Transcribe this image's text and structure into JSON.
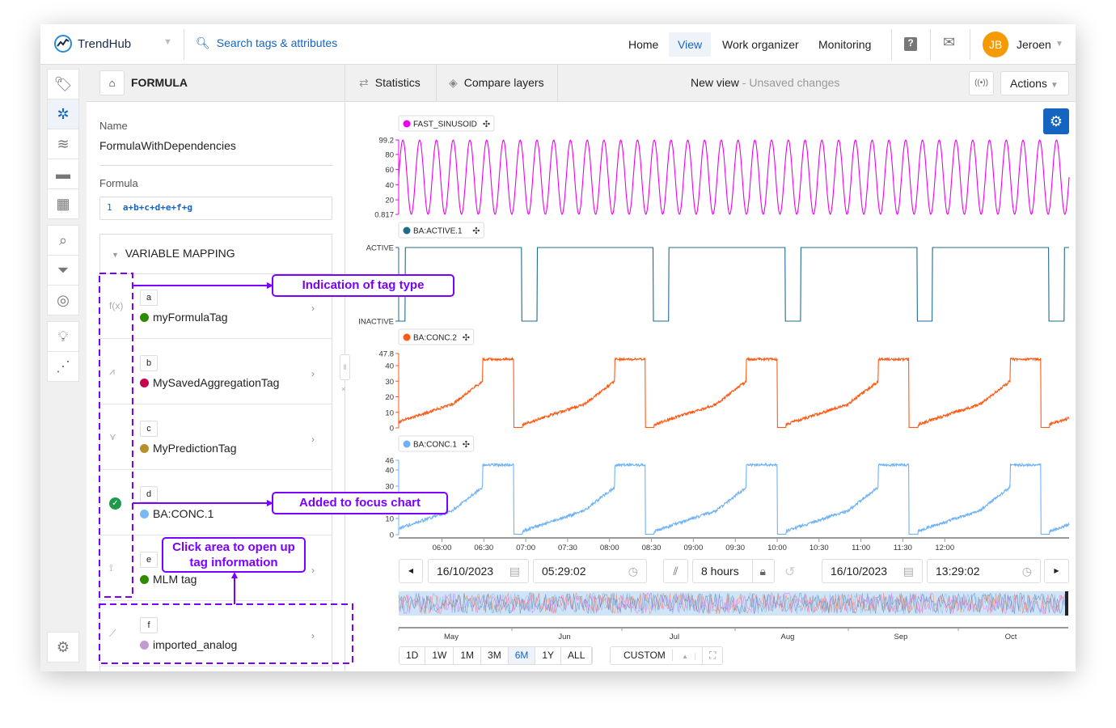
{
  "app": {
    "brand": "TrendHub",
    "search_placeholder": "Search tags & attributes"
  },
  "nav": {
    "items": [
      "Home",
      "View",
      "Work organizer",
      "Monitoring"
    ],
    "active": "View"
  },
  "user": {
    "initials": "JB",
    "name": "Jeroen",
    "avatar_color": "#f59a00"
  },
  "panel": {
    "title": "FORMULA",
    "name_label": "Name",
    "name_value": "FormulaWithDependencies",
    "formula_label": "Formula",
    "formula_line": "1",
    "formula_code": "a+b+c+d+e+f+g",
    "mapping_title": "VARIABLE MAPPING",
    "variables": [
      {
        "letter": "a",
        "name": "myFormulaTag",
        "color": "#2e8b00",
        "icon": "formula-icon"
      },
      {
        "letter": "b",
        "name": "MySavedAggregationTag",
        "color": "#c8004f",
        "icon": "aggregation-icon"
      },
      {
        "letter": "c",
        "name": "MyPredictionTag",
        "color": "#b8902a",
        "icon": "prediction-icon"
      },
      {
        "letter": "d",
        "name": "BA:CONC.1",
        "color": "#7ab8f5",
        "icon": "check-circle-icon"
      },
      {
        "letter": "e",
        "name": "MLM tag",
        "color": "#2e8b00",
        "icon": "mlm-icon"
      },
      {
        "letter": "f",
        "name": "imported_analog",
        "color": "#c39bd3",
        "icon": "analog-icon"
      }
    ]
  },
  "toolbar": {
    "statistics": "Statistics",
    "compare": "Compare layers",
    "view_name": "New view",
    "view_status": "Unsaved changes",
    "actions": "Actions"
  },
  "annotations": {
    "tag_type": "Indication of tag type",
    "focus": "Added to focus chart",
    "click_area": "Click area to open up tag information",
    "color": "#7a00ff"
  },
  "time": {
    "start_date": "16/10/2023",
    "start_time": "05:29:02",
    "duration": "8 hours",
    "end_date": "16/10/2023",
    "end_time": "13:29:02"
  },
  "ranges": [
    "1D",
    "1W",
    "1M",
    "3M",
    "6M",
    "1Y",
    "ALL"
  ],
  "range_active": "6M",
  "custom": "CUSTOM",
  "navigator_months": [
    "May",
    "Jun",
    "Jul",
    "Aug",
    "Sep",
    "Oct"
  ],
  "chart_data": {
    "type": "line",
    "x_range": [
      "05:29:02",
      "13:29:02"
    ],
    "x_ticks": [
      "06:00",
      "06:30",
      "07:00",
      "07:30",
      "08:00",
      "08:30",
      "09:00",
      "09:30",
      "10:00",
      "10:30",
      "11:00",
      "11:30",
      "12:00"
    ],
    "series": [
      {
        "name": "FAST_SINUSOID",
        "color": "#ee00ee",
        "ylim": [
          0.817,
          99.2
        ],
        "yticks": [
          "99.2",
          "80",
          "60",
          "40",
          "20",
          "0.817"
        ],
        "shape": "sinusoid",
        "cycles": 40
      },
      {
        "name": "BA:ACTIVE.1",
        "color": "#1f6b8e",
        "ylim": [
          "INACTIVE",
          "ACTIVE"
        ],
        "yticks": [
          "ACTIVE",
          "INACTIVE"
        ],
        "shape": "step"
      },
      {
        "name": "BA:CONC.2",
        "color": "#ff5a14",
        "ylim": [
          0,
          47.8
        ],
        "yticks": [
          "47.8",
          "40",
          "30",
          "20",
          "10",
          "0"
        ],
        "shape": "ramp",
        "peak": 45
      },
      {
        "name": "BA:CONC.1",
        "color": "#6fb3f5",
        "ylim": [
          0,
          46
        ],
        "yticks": [
          "46",
          "40",
          "30",
          "10",
          "0"
        ],
        "shape": "ramp",
        "peak": 44
      }
    ]
  }
}
